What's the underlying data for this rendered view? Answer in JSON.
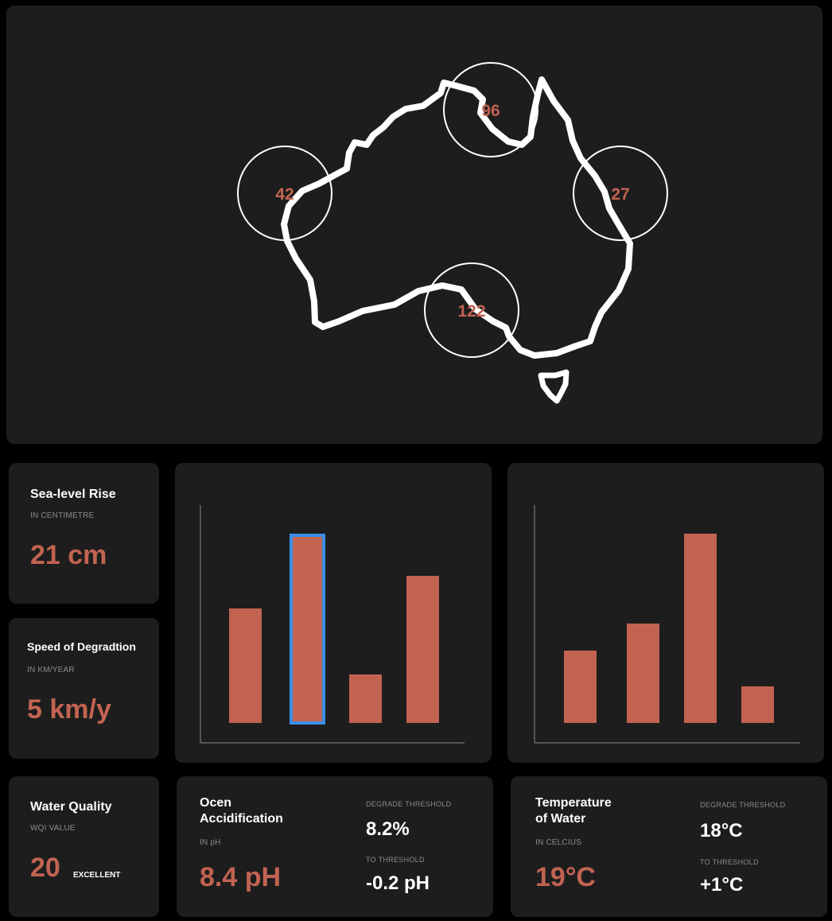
{
  "map": {
    "regions": [
      {
        "name": "west",
        "value": "42"
      },
      {
        "name": "north",
        "value": "96"
      },
      {
        "name": "east",
        "value": "27"
      },
      {
        "name": "south",
        "value": "122"
      }
    ],
    "outline_color": "#ffffff",
    "label_color": "#c26351"
  },
  "sea_level": {
    "title": "Sea-level Rise",
    "unit_label": "IN CENTIMETRE",
    "value": "21 cm"
  },
  "degradation": {
    "title": "Speed of Degradtion",
    "unit_label": "IN KM/YEAR",
    "value": "5 km/y"
  },
  "water_quality": {
    "title": "Water Quality",
    "unit_label": "WQI VALUE",
    "value": "20",
    "rating": "EXCELLENT"
  },
  "ocean_acidification": {
    "title_line1": "Ocen",
    "title_line2": "Accidification",
    "unit_label": "IN pH",
    "value": "8.4 pH",
    "degrade_label": "DEGRADE THRESHOLD",
    "degrade_value": "8.2%",
    "to_label": "TO THRESHOLD",
    "to_value": "-0.2 pH"
  },
  "water_temperature": {
    "title_line1": "Temperature",
    "title_line2": "of Water",
    "unit_label": "IN CELCIUS",
    "value": "19°C",
    "degrade_label": "DEGRADE THRESHOLD",
    "degrade_value": "18°C",
    "to_label": "TO THRESHOLD",
    "to_value": "+1°C"
  },
  "colors": {
    "accent": "#c26351",
    "panel": "#1d1d1d",
    "background": "#000000",
    "highlight": "#3b8ee8"
  },
  "chart_data": [
    {
      "type": "bar",
      "values": [
        144,
        236,
        61,
        185
      ],
      "ylim": [
        0,
        300
      ],
      "highlighted_index": 1,
      "grid": false,
      "axis_labels_shown": false
    },
    {
      "type": "bar",
      "values": [
        91,
        125,
        238,
        46
      ],
      "ylim": [
        0,
        300
      ],
      "grid": false,
      "axis_labels_shown": false
    }
  ]
}
